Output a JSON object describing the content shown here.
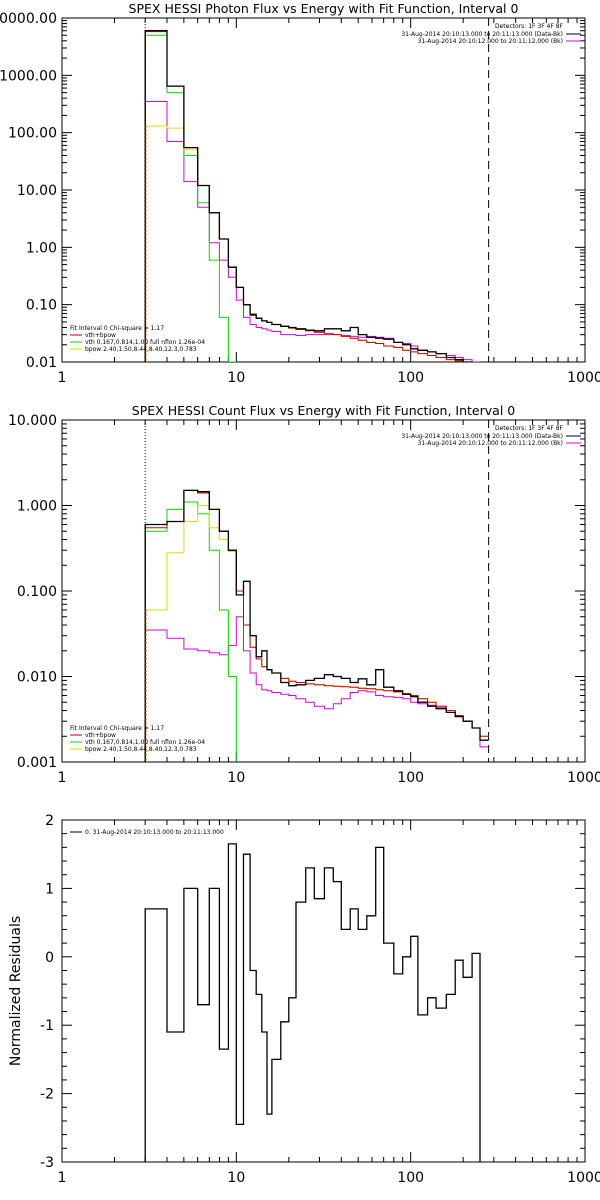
{
  "colors": {
    "data": "#000000",
    "total": "#cc0000",
    "vth": "#00dd00",
    "bpow": "#dddd00",
    "background": "#dd00dd",
    "threshold": "#ff8800"
  },
  "chart_data": [
    {
      "type": "line",
      "title": "SPEX HESSI Photon Flux vs Energy with Fit Function, Interval 0",
      "xlabel": "",
      "ylabel": "",
      "xscale": "log",
      "yscale": "log",
      "xlim": [
        1,
        1000
      ],
      "ylim": [
        0.01,
        10000
      ],
      "xticks": [
        "1",
        "10",
        "100",
        "1000"
      ],
      "yticks": [
        "10000.00",
        "1000.00",
        "100.00",
        "10.00",
        "1.00",
        "0.10",
        "0.01"
      ],
      "vlines": {
        "dotted": 3,
        "dashed": 280
      },
      "edges": [
        3,
        4,
        5,
        6,
        7,
        8,
        9,
        10,
        11,
        12,
        13,
        14,
        15,
        16,
        18,
        20,
        22,
        25,
        28,
        32,
        36,
        40,
        45,
        50,
        56,
        63,
        70,
        80,
        90,
        100,
        110,
        125,
        140,
        160,
        180,
        200,
        225,
        250,
        280
      ],
      "legend_right": {
        "header": "Detectors: 1F 3F 4F 8F",
        "items": [
          {
            "text": "31-Aug-2014 20:10:13.000 to 20:11:13.000 (Data-Bk)",
            "color": "data"
          },
          {
            "text": "31-Aug-2014 20:10:12.000 to 20:11:12.000 (Bk)",
            "color": "background"
          }
        ]
      },
      "legend_left": {
        "header": "Fit Interval 0   Chi-square = 1.17",
        "items": [
          {
            "text": "vth+bpow",
            "color": "total"
          },
          {
            "text": "vth 0.167,0.814,1.00  full nflon 1.26e-04",
            "color": "vth"
          },
          {
            "text": "bpow 2.40,1.50,8.44,8.40,12.3,0.783",
            "color": "bpow"
          }
        ]
      },
      "series": [
        {
          "key": "data",
          "values": [
            6000,
            650,
            55,
            12,
            4,
            1.4,
            0.45,
            0.2,
            0.1,
            0.068,
            0.058,
            0.052,
            0.049,
            0.045,
            0.042,
            0.04,
            0.038,
            0.036,
            0.035,
            0.038,
            0.038,
            0.035,
            0.04,
            0.03,
            0.027,
            0.026,
            0.025,
            0.022,
            0.02,
            0.017,
            0.016,
            0.015,
            0.014,
            0.012,
            0.011,
            0.01,
            0.0095,
            0.009
          ]
        },
        {
          "key": "total",
          "values": [
            5800,
            650,
            55,
            12,
            4,
            1.4,
            0.45,
            0.2,
            0.1,
            0.065,
            0.058,
            0.052,
            0.049,
            0.045,
            0.042,
            0.039,
            0.037,
            0.035,
            0.033,
            0.031,
            0.03,
            0.028,
            0.026,
            0.024,
            0.022,
            0.021,
            0.019,
            0.018,
            0.016,
            0.015,
            0.014,
            0.013,
            0.012,
            0.011,
            0.0105,
            0.01,
            0.0095,
            0.009
          ]
        },
        {
          "key": "vth",
          "values": [
            5000,
            500,
            40,
            6,
            0.6,
            0.06,
            0.01,
            0.0001
          ]
        },
        {
          "key": "bpow",
          "values": [
            130,
            120,
            50,
            12,
            4,
            1.4,
            0.45,
            0.2,
            0.1,
            0.065,
            0.058,
            0.052,
            0.049,
            0.045,
            0.042,
            0.039,
            0.037,
            0.035,
            0.033,
            0.031,
            0.03,
            0.028,
            0.026,
            0.024,
            0.022,
            0.021,
            0.019,
            0.018,
            0.016,
            0.015,
            0.014,
            0.013,
            0.012,
            0.011,
            0.0105,
            0.01,
            0.0095,
            0.009
          ]
        },
        {
          "key": "background",
          "values": [
            350,
            70,
            14,
            5,
            1.2,
            0.6,
            0.3,
            0.12,
            0.06,
            0.045,
            0.04,
            0.038,
            0.036,
            0.034,
            0.03,
            0.03,
            0.029,
            0.03,
            0.03,
            0.03,
            0.03,
            0.029,
            0.028,
            0.027,
            0.028,
            0.027,
            0.026,
            0.022,
            0.021,
            0.019,
            0.016,
            0.015,
            0.014,
            0.013,
            0.012,
            0.011,
            0.01,
            0.0095
          ]
        }
      ]
    },
    {
      "type": "line",
      "title": "SPEX HESSI Count Flux vs Energy with Fit Function, Interval 0",
      "xlabel": "",
      "ylabel": "",
      "xscale": "log",
      "yscale": "log",
      "xlim": [
        1,
        1000
      ],
      "ylim": [
        0.001,
        10
      ],
      "xticks": [
        "1",
        "10",
        "100",
        "1000"
      ],
      "yticks": [
        "10.000",
        "1.000",
        "0.100",
        "0.010",
        "0.001"
      ],
      "vlines": {
        "dotted": 3,
        "dashed": 280
      },
      "edges": [
        3,
        4,
        5,
        6,
        7,
        8,
        9,
        10,
        11,
        12,
        13,
        14,
        15,
        16,
        18,
        20,
        22,
        25,
        28,
        32,
        36,
        40,
        45,
        50,
        56,
        63,
        70,
        80,
        90,
        100,
        110,
        125,
        140,
        160,
        180,
        200,
        225,
        250,
        280
      ],
      "legend_right": {
        "header": "Detectors: 1F 3F 4F 8F",
        "items": [
          {
            "text": "31-Aug-2014 20:10:13.000 to 20:11:13.000 (Data-Bk)",
            "color": "data"
          },
          {
            "text": "31-Aug-2014 20:10:12.000 to 20:11:12.000 (Bk)",
            "color": "background"
          }
        ]
      },
      "legend_left": {
        "header": "Fit Interval 0   Chi-square = 1.17",
        "items": [
          {
            "text": "vth+bpow",
            "color": "total"
          },
          {
            "text": "vth 0.167,0.814,1.00  full nflon 1.26e-04",
            "color": "vth"
          },
          {
            "text": "bpow 2.40,1.50,8.44,8.40,12.3,0.783",
            "color": "bpow"
          }
        ]
      },
      "series": [
        {
          "key": "data",
          "values": [
            0.6,
            0.65,
            1.5,
            1.45,
            0.9,
            0.5,
            0.3,
            0.09,
            0.13,
            0.03,
            0.017,
            0.02,
            0.012,
            0.011,
            0.0085,
            0.0078,
            0.008,
            0.009,
            0.0095,
            0.0105,
            0.01,
            0.0095,
            0.0085,
            0.0094,
            0.008,
            0.012,
            0.0075,
            0.0068,
            0.0062,
            0.0058,
            0.005,
            0.0045,
            0.0042,
            0.0038,
            0.0034,
            0.003,
            0.0025,
            0.0018
          ]
        },
        {
          "key": "total",
          "values": [
            0.55,
            0.65,
            1.5,
            1.4,
            0.9,
            0.5,
            0.3,
            0.1,
            0.04,
            0.022,
            0.016,
            0.013,
            0.012,
            0.011,
            0.0095,
            0.0088,
            0.0085,
            0.0082,
            0.008,
            0.0078,
            0.0077,
            0.0076,
            0.0075,
            0.0073,
            0.0072,
            0.007,
            0.0068,
            0.0066,
            0.0063,
            0.006,
            0.0055,
            0.005,
            0.0045,
            0.004,
            0.0035,
            0.003,
            0.0025,
            0.002
          ]
        },
        {
          "key": "vth",
          "values": [
            0.5,
            0.9,
            1.1,
            0.8,
            0.3,
            0.06,
            0.01,
            0.0009
          ]
        },
        {
          "key": "bpow",
          "values": [
            0.06,
            0.28,
            0.65,
            1.0,
            0.55,
            0.4,
            0.29,
            0.1,
            0.04,
            0.022,
            0.016,
            0.013,
            0.012,
            0.011,
            0.0095,
            0.0088,
            0.0085,
            0.0082,
            0.008,
            0.0078,
            0.0077,
            0.0076,
            0.0075,
            0.0073,
            0.0072,
            0.007,
            0.0068,
            0.0066,
            0.0063,
            0.006,
            0.0055,
            0.005,
            0.0045,
            0.004,
            0.0035,
            0.003,
            0.0025,
            0.002
          ]
        },
        {
          "key": "background",
          "values": [
            0.035,
            0.028,
            0.021,
            0.02,
            0.019,
            0.018,
            0.023,
            0.05,
            0.02,
            0.011,
            0.008,
            0.007,
            0.0068,
            0.0065,
            0.0062,
            0.006,
            0.0055,
            0.005,
            0.0045,
            0.0042,
            0.0048,
            0.0055,
            0.0065,
            0.0068,
            0.0066,
            0.006,
            0.0058,
            0.0057,
            0.0055,
            0.005,
            0.0048,
            0.0046,
            0.0043,
            0.004,
            0.0035,
            0.003,
            0.0025,
            0.0015
          ]
        }
      ]
    },
    {
      "type": "line",
      "title": "",
      "xlabel": "",
      "ylabel": "Normalized Residuals",
      "xscale": "log",
      "yscale": "linear",
      "xlim": [
        1,
        1000
      ],
      "ylim": [
        -3,
        2
      ],
      "xticks": [
        "1",
        "10",
        "100",
        "1000"
      ],
      "yticks": [
        "2",
        "1",
        "0",
        "-1",
        "-2",
        "-3"
      ],
      "legend_right": null,
      "legend_left": {
        "header": "",
        "items": [
          {
            "text": "0. 31-Aug-2014 20:10:13.000 to 20:11:13.000",
            "color": "data"
          }
        ]
      },
      "edges": [
        3,
        4,
        5,
        6,
        7,
        8,
        9,
        10,
        11,
        12,
        13,
        14,
        15,
        16,
        18,
        20,
        22,
        25,
        28,
        32,
        36,
        40,
        45,
        50,
        56,
        63,
        70,
        80,
        90,
        100,
        110,
        125,
        140,
        160,
        180,
        200,
        225,
        250,
        280
      ],
      "series": [
        {
          "key": "data",
          "values": [
            0.7,
            -1.1,
            1.0,
            -0.7,
            1.0,
            -1.35,
            1.65,
            -2.45,
            1.5,
            -0.2,
            -0.55,
            -1.1,
            -2.3,
            -1.5,
            -0.95,
            -0.6,
            0.8,
            1.3,
            0.85,
            1.3,
            1.1,
            0.4,
            0.7,
            0.4,
            0.6,
            1.6,
            0.2,
            -0.25,
            0.0,
            0.3,
            -0.85,
            -0.6,
            -0.75,
            -0.55,
            -0.05,
            -0.3,
            0.05,
            -3.1
          ]
        }
      ]
    }
  ]
}
